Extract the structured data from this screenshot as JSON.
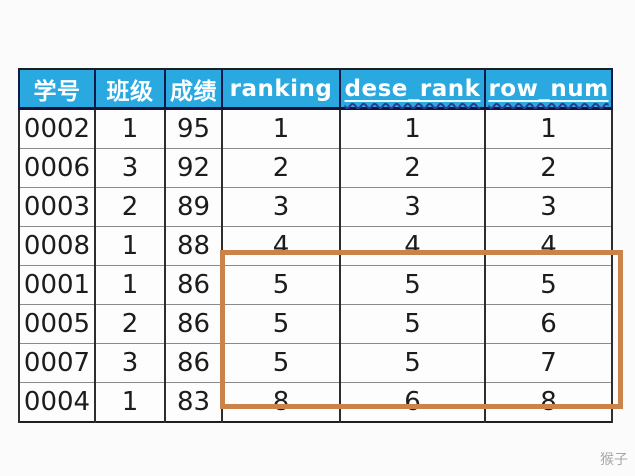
{
  "page": {
    "background": "#fbfbfb",
    "watermark": "猴子"
  },
  "chart_data": {
    "type": "table",
    "title": "",
    "columns": [
      "学号",
      "班级",
      "成绩",
      "ranking",
      "dese_rank",
      "row_num"
    ],
    "rows": [
      [
        "0002",
        "1",
        "95",
        "1",
        "1",
        "1"
      ],
      [
        "0006",
        "3",
        "92",
        "2",
        "2",
        "2"
      ],
      [
        "0003",
        "2",
        "89",
        "3",
        "3",
        "3"
      ],
      [
        "0008",
        "1",
        "88",
        "4",
        "4",
        "4"
      ],
      [
        "0001",
        "1",
        "86",
        "5",
        "5",
        "5"
      ],
      [
        "0005",
        "2",
        "86",
        "5",
        "5",
        "6"
      ],
      [
        "0007",
        "3",
        "86",
        "5",
        "5",
        "7"
      ],
      [
        "0004",
        "1",
        "83",
        "8",
        "6",
        "8"
      ]
    ],
    "header_style": {
      "bg": "#29a9e0",
      "text_color": "#ffffff",
      "spellcheck_underline_columns": [
        "dese_rank",
        "row_num"
      ]
    },
    "highlight_box": {
      "color": "#cc8349",
      "columns": [
        "ranking",
        "dese_rank",
        "row_num"
      ],
      "row_start": 5,
      "row_end": 8
    }
  }
}
